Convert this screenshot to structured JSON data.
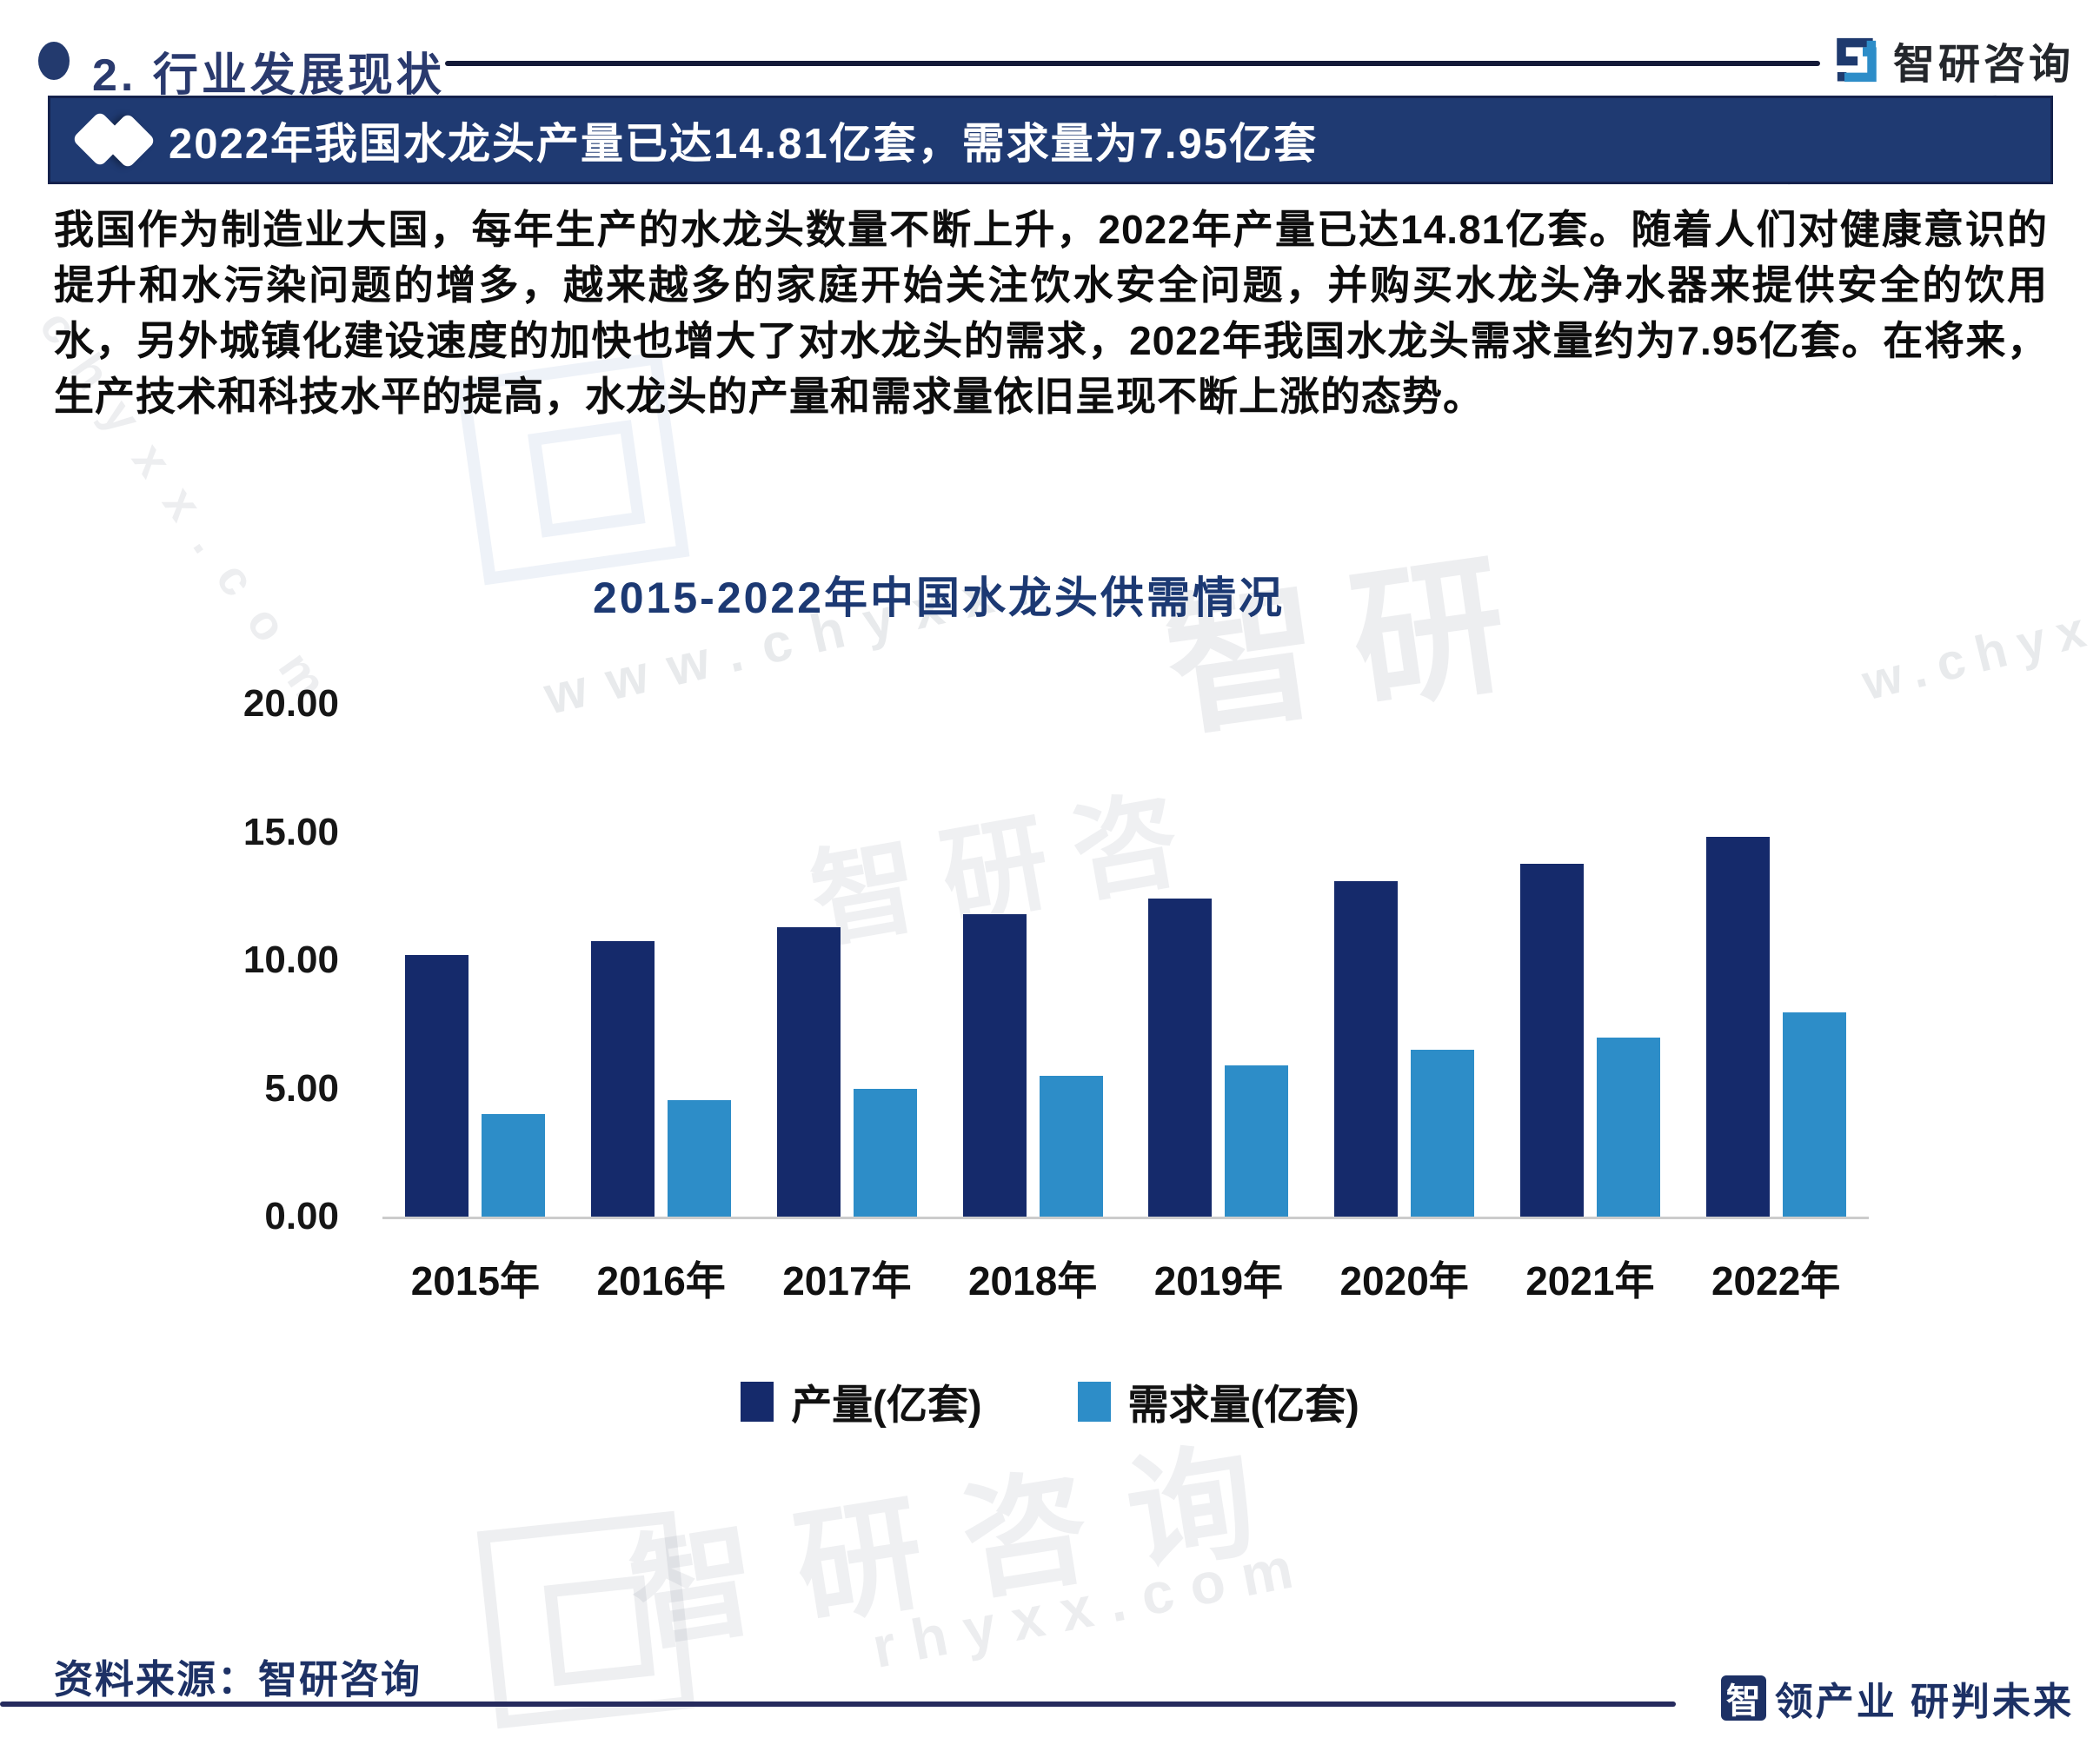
{
  "header": {
    "section_title": "2. 行业发展现状",
    "logo_text": "智研咨询"
  },
  "banner": {
    "title": "2022年我国水龙头产量已达14.81亿套，需求量为7.95亿套"
  },
  "body": {
    "paragraph": "我国作为制造业大国，每年生产的水龙头数量不断上升，2022年产量已达14.81亿套。随着人们对健康意识的提升和水污染问题的增多，越来越多的家庭开始关注饮水安全问题，并购买水龙头净水器来提供安全的饮用水，另外城镇化建设速度的加快也增大了对水龙头的需求，2022年我国水龙头需求量约为7.95亿套。在将来，生产技术和科技水平的提高，水龙头的产量和需求量依旧呈现不断上涨的态势。"
  },
  "chart_data": {
    "type": "bar",
    "title": "2015-2022年中国水龙头供需情况",
    "categories": [
      "2015年",
      "2016年",
      "2017年",
      "2018年",
      "2019年",
      "2020年",
      "2021年",
      "2022年"
    ],
    "series": [
      {
        "name": "产量(亿套)",
        "color": "#152a6b",
        "values": [
          10.2,
          10.75,
          11.3,
          11.8,
          12.4,
          13.1,
          13.75,
          14.81
        ]
      },
      {
        "name": "需求量(亿套)",
        "color": "#2d8dc8",
        "values": [
          4.0,
          4.55,
          5.0,
          5.5,
          5.9,
          6.5,
          7.0,
          7.95
        ]
      }
    ],
    "xlabel": "",
    "ylabel": "",
    "ylim": [
      0,
      20
    ],
    "yticks": [
      "20.00",
      "15.00",
      "10.00",
      "5.00",
      "0.00"
    ],
    "grid": false,
    "legend_position": "bottom"
  },
  "footer": {
    "source": "资料来源：智研咨询",
    "slogan_mark": "智",
    "slogan_rest": "领产业 研判未来"
  },
  "colors": {
    "accent_navy": "#1d3165",
    "banner_bg": "#1f3a72",
    "bar_production": "#152a6b",
    "bar_demand": "#2d8dc8"
  },
  "watermarks": [
    {
      "text": "www.chyxx."
    },
    {
      "text": "chyxx.com"
    },
    {
      "text": "智研咨"
    },
    {
      "text": "智研"
    },
    {
      "text": "w.chyx"
    },
    {
      "text": "智研咨询"
    },
    {
      "text": "rhyxx.com"
    },
    {
      "text": "www.chy"
    }
  ]
}
